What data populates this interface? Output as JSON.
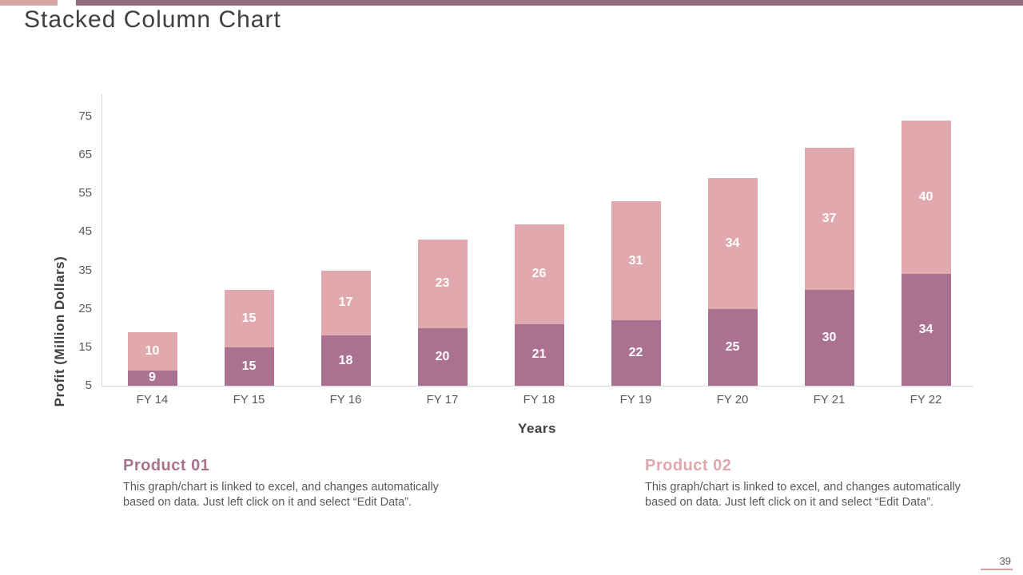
{
  "slide": {
    "title": "Stacked Column Chart",
    "page_number": "39"
  },
  "chart_data": {
    "type": "bar",
    "stacked": true,
    "categories": [
      "FY 14",
      "FY 15",
      "FY 16",
      "FY 17",
      "FY 18",
      "FY 19",
      "FY 20",
      "FY 21",
      "FY 22"
    ],
    "series": [
      {
        "name": "Product 01",
        "color": "#ab7190",
        "values": [
          9,
          15,
          18,
          20,
          21,
          22,
          25,
          30,
          34
        ]
      },
      {
        "name": "Product 02",
        "color": "#e1a8ad",
        "values": [
          10,
          15,
          17,
          23,
          26,
          31,
          34,
          37,
          40
        ]
      }
    ],
    "xlabel": "Years",
    "ylabel": "Profit  (Million Dollars)",
    "ylim": [
      5,
      75
    ],
    "ytick_step": 10,
    "yticks": [
      5,
      15,
      25,
      35,
      45,
      55,
      65,
      75
    ],
    "grid": false,
    "legend_position": "below-as-text-blocks",
    "value_label_color": "#ffffff"
  },
  "legend_blocks": [
    {
      "title": "Product 01",
      "color": "#a8718c",
      "description": "This graph/chart is linked to excel, and changes automatically based on data. Just left click on it and select “Edit Data”."
    },
    {
      "title": "Product 02",
      "color": "#dfa7ac",
      "description": "This graph/chart is linked to excel, and changes automatically based on data. Just left click on it and select “Edit Data”."
    }
  ],
  "colors": {
    "accent_left": "#d7a7a6",
    "accent_bar": "#936a7e",
    "series1": "#ab7190",
    "series2": "#e1a8ad",
    "axis_line": "#d6d6d6",
    "tick_text": "#595959",
    "title_text": "#3f3f3f",
    "page_underline": "#d2a0a2"
  }
}
